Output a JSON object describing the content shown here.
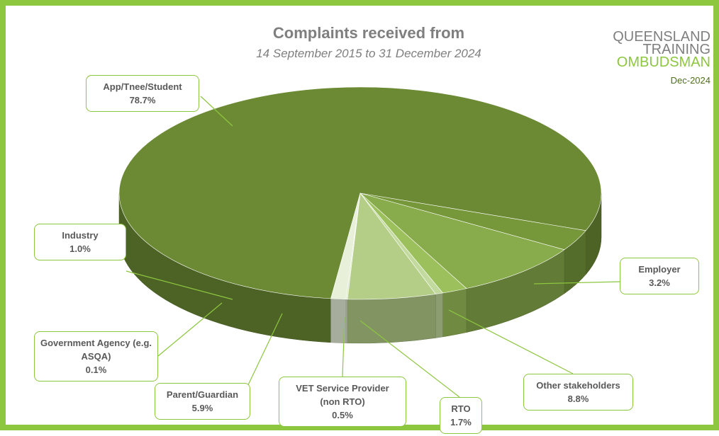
{
  "chart_data": {
    "type": "pie",
    "title": "Complaints received from",
    "subtitle": "14 September 2015 to 31 December 2024",
    "logo": [
      "QUEENSLAND",
      "TRAINING",
      "OMBUDSMAN"
    ],
    "date": "Dec-2024",
    "categories": [
      "App/Tnee/Student",
      "Employer",
      "Other stakeholders",
      "RTO",
      "VET Service Provider (non RTO)",
      "Parent/Guardian",
      "Government Agency (e.g. ASQA)",
      "Industry"
    ],
    "values": [
      78.7,
      3.2,
      8.8,
      1.7,
      0.5,
      5.9,
      0.1,
      1.0
    ],
    "value_labels": [
      "78.7%",
      "3.2%",
      "8.8%",
      "1.7%",
      "0.5%",
      "5.9%",
      "0.1%",
      "1.0%"
    ],
    "colors": [
      "#6b8a33",
      "#76983a",
      "#88ab4b",
      "#9cc05c",
      "#c3da9f",
      "#b4ce88",
      "#dbe8c5",
      "#e8f0da"
    ]
  }
}
